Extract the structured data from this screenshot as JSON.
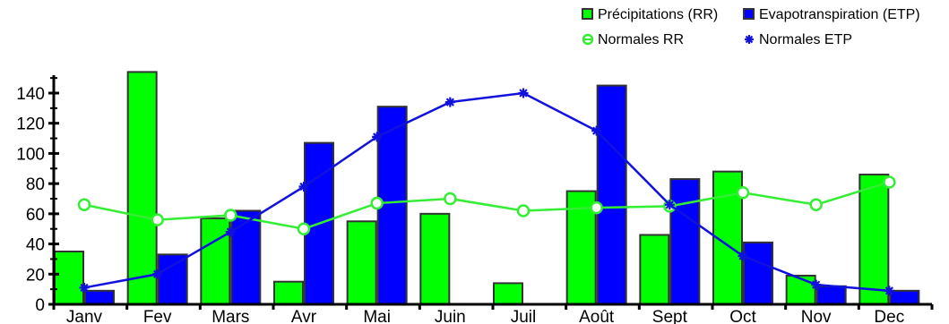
{
  "chart_data": {
    "type": "bar",
    "categories": [
      "Janv",
      "Fev",
      "Mars",
      "Avr",
      "Mai",
      "Juin",
      "Juil",
      "Août",
      "Sept",
      "Oct",
      "Nov",
      "Dec"
    ],
    "series": [
      {
        "name": "Précipitations (RR)",
        "kind": "bar",
        "color": "#00ff00",
        "values": [
          35,
          154,
          57,
          15,
          55,
          60,
          14,
          75,
          46,
          88,
          19,
          86
        ]
      },
      {
        "name": "Evapotranspiration (ETP)",
        "kind": "bar",
        "color": "#0000ff",
        "values": [
          9,
          33,
          62,
          107,
          131,
          0,
          0,
          145,
          83,
          41,
          12,
          9
        ]
      },
      {
        "name": "Normales RR",
        "kind": "line",
        "marker": "circle",
        "color": "#33ee33",
        "values": [
          66,
          56,
          59,
          50,
          67,
          70,
          62,
          64,
          65,
          74,
          66,
          81
        ]
      },
      {
        "name": "Normales ETP",
        "kind": "line",
        "marker": "star",
        "color": "#1111dd",
        "values": [
          11,
          20,
          48,
          78,
          111,
          134,
          140,
          115,
          66,
          32,
          13,
          9
        ]
      }
    ],
    "yticks": [
      0,
      20,
      40,
      60,
      80,
      100,
      120,
      140
    ],
    "ylim": [
      0,
      155
    ],
    "title": "",
    "xlabel": "",
    "ylabel": "",
    "legend_position": "top-right",
    "grid": false
  }
}
